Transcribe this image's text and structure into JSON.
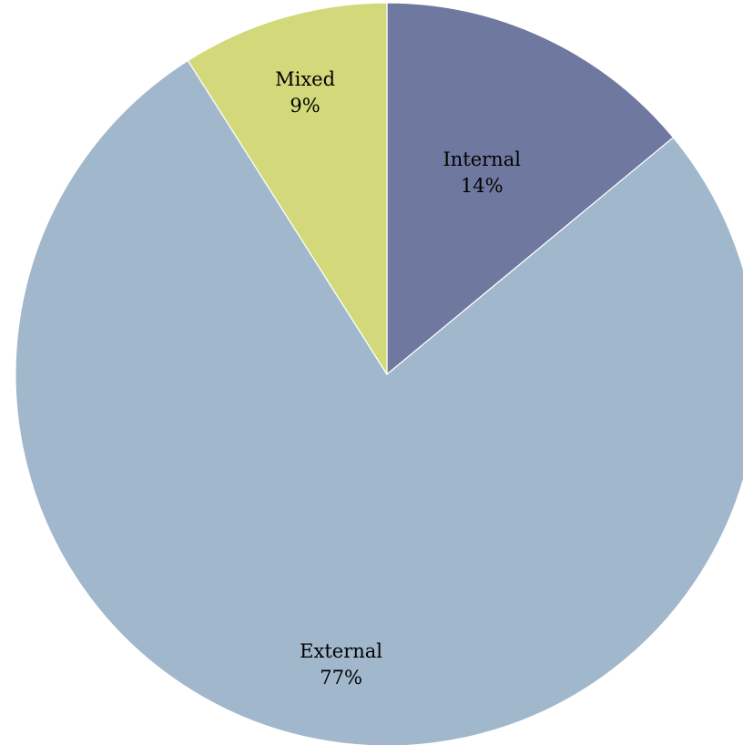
{
  "chart_data": {
    "type": "pie",
    "categories": [
      "Internal",
      "External",
      "Mixed"
    ],
    "values": [
      14,
      77,
      9
    ],
    "value_labels": [
      "14%",
      "77%",
      "9%"
    ],
    "colors": [
      "#6f79a0",
      "#a1b7cc",
      "#d3d97a"
    ],
    "start": "12 o'clock",
    "direction": "clockwise",
    "legend": "none"
  }
}
